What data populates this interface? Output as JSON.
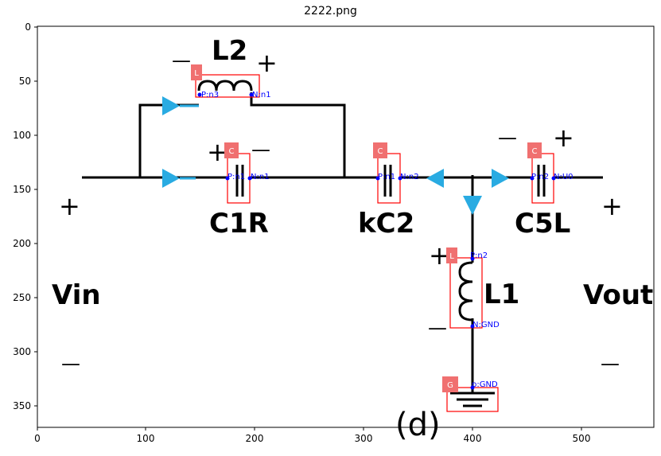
{
  "figure": {
    "title": "2222.png",
    "x_ticks": [
      "0",
      "100",
      "200",
      "300",
      "400",
      "500"
    ],
    "y_ticks": [
      "0",
      "50",
      "100",
      "150",
      "200",
      "250",
      "300",
      "350"
    ]
  },
  "circuit": {
    "labels": {
      "l2": "L2",
      "c1r": "C1R",
      "kc2": "kC2",
      "c5l": "C5L",
      "l1": "L1",
      "vin": "Vin",
      "vout": "Vout",
      "caption": "(d)"
    },
    "signs": {
      "plus": "+",
      "minus": "—"
    },
    "boxes": {
      "l2": {
        "tag": "L",
        "p": "P:n3",
        "n": "N:n1"
      },
      "c1r": {
        "tag": "C",
        "p": "P:n1",
        "n": "N:n1"
      },
      "kc2": {
        "tag": "C",
        "p": "P:n1",
        "n": "N:n2"
      },
      "c5l": {
        "tag": "C",
        "p": "P:n2",
        "n": "N:U0"
      },
      "l1": {
        "tag": "L",
        "p": "P:n2",
        "n": "N:GND"
      },
      "gnd": {
        "tag": "G",
        "p": "p:GND"
      }
    }
  },
  "colors": {
    "box": "#ff0000",
    "tag_fill": "#f07070",
    "node": "#0000ff",
    "arrow": "#29abe2",
    "wire": "#000000"
  }
}
